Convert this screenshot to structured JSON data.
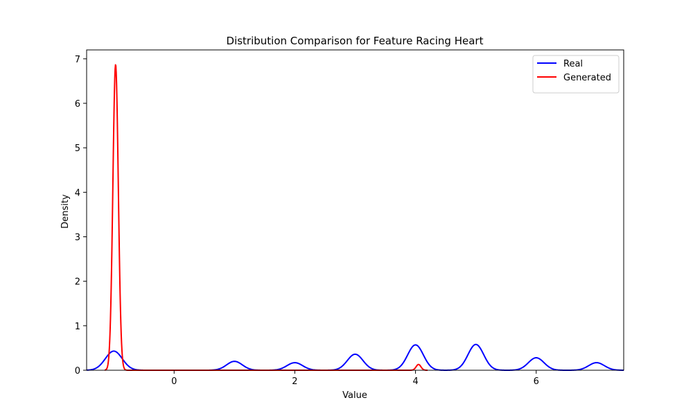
{
  "chart_data": {
    "type": "line",
    "title": "Distribution Comparison for Feature Racing Heart",
    "xlabel": "Value",
    "ylabel": "Density",
    "xlim": [
      -1.45,
      7.45
    ],
    "ylim": [
      0,
      7.2
    ],
    "xticks": [
      0,
      2,
      4,
      6
    ],
    "yticks": [
      0,
      1,
      2,
      3,
      4,
      5,
      6,
      7
    ],
    "grid": false,
    "legend_position": "top-right",
    "series": [
      {
        "name": "Real",
        "color": "#0000ff",
        "x_range": [
          -1.45,
          7.45
        ],
        "peaks": [
          {
            "center": -1.0,
            "height": 0.43,
            "width": 0.14
          },
          {
            "center": 1.0,
            "height": 0.2,
            "width": 0.13
          },
          {
            "center": 2.0,
            "height": 0.17,
            "width": 0.13
          },
          {
            "center": 3.0,
            "height": 0.36,
            "width": 0.13
          },
          {
            "center": 4.0,
            "height": 0.57,
            "width": 0.13
          },
          {
            "center": 5.0,
            "height": 0.58,
            "width": 0.13
          },
          {
            "center": 6.0,
            "height": 0.28,
            "width": 0.13
          },
          {
            "center": 7.0,
            "height": 0.17,
            "width": 0.13
          }
        ]
      },
      {
        "name": "Generated",
        "color": "#ff0000",
        "x_range": [
          -1.15,
          4.2
        ],
        "peaks": [
          {
            "center": -0.97,
            "height": 6.87,
            "width": 0.045
          },
          {
            "center": 4.05,
            "height": 0.13,
            "width": 0.04
          }
        ]
      }
    ]
  }
}
